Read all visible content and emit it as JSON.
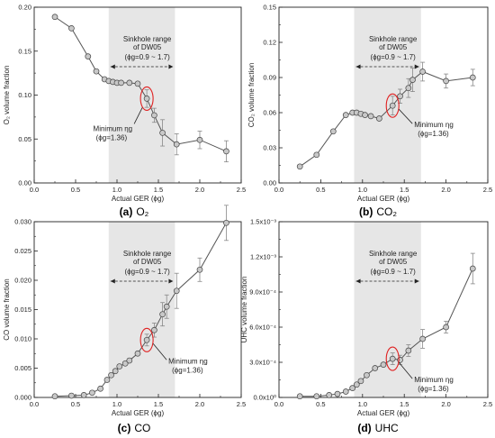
{
  "colors": {
    "band": "#e6e6e6",
    "line": "#555555",
    "marker_fill": "#c8c8c8",
    "highlight": "#e02020",
    "axis": "#222222"
  },
  "chart_data": [
    {
      "type": "line",
      "caption_letter": "(a)",
      "caption_text": "O₂",
      "xlabel": "Actual GER (ϕg)",
      "ylabel": "O₂ volume fraction",
      "xlim": [
        0.0,
        2.5
      ],
      "ylim": [
        0.0,
        0.2
      ],
      "xticks": [
        "0.0",
        "0.5",
        "1.0",
        "1.5",
        "2.0",
        "2.5"
      ],
      "yticks": [
        "0.00",
        "0.05",
        "0.10",
        "0.15",
        "0.20"
      ],
      "band": [
        0.9,
        1.7
      ],
      "band_title_1": "Sinkhole range",
      "band_title_2": "of DW05",
      "band_range": "(ϕg=0.9 ~ 1.7)",
      "annotation_1": "Minimum ηg",
      "annotation_2": "(ϕg=1.36)",
      "highlight_x": 1.36,
      "x": [
        0.25,
        0.45,
        0.65,
        0.75,
        0.85,
        0.9,
        0.95,
        1.0,
        1.05,
        1.15,
        1.25,
        1.36,
        1.45,
        1.55,
        1.72,
        2.0,
        2.32
      ],
      "y": [
        0.189,
        0.176,
        0.144,
        0.127,
        0.118,
        0.116,
        0.115,
        0.114,
        0.114,
        0.114,
        0.113,
        0.096,
        0.077,
        0.057,
        0.044,
        0.049,
        0.036
      ],
      "err": [
        0,
        0,
        0,
        0,
        0,
        0,
        0,
        0,
        0,
        0,
        0,
        0.01,
        0.008,
        0.015,
        0.012,
        0.01,
        0.012
      ]
    },
    {
      "type": "line",
      "caption_letter": "(b)",
      "caption_text": "CO₂",
      "xlabel": "Actual GER (ϕg)",
      "ylabel": "CO₂ volume fraction",
      "xlim": [
        0.0,
        2.5
      ],
      "ylim": [
        0.0,
        0.15
      ],
      "xticks": [
        "0.0",
        "0.5",
        "1.0",
        "1.5",
        "2.0",
        "2.5"
      ],
      "yticks": [
        "0.00",
        "0.03",
        "0.06",
        "0.09",
        "0.12",
        "0.15"
      ],
      "band": [
        0.9,
        1.7
      ],
      "band_title_1": "Sinkhole range",
      "band_title_2": "of DW05",
      "band_range": "(ϕg=0.9 ~ 1.7)",
      "annotation_1": "Minimum ηg",
      "annotation_2": "(ϕg=1.36)",
      "highlight_x": 1.36,
      "x": [
        0.25,
        0.45,
        0.65,
        0.8,
        0.88,
        0.93,
        0.98,
        1.03,
        1.1,
        1.2,
        1.36,
        1.45,
        1.55,
        1.6,
        1.72,
        2.0,
        2.32
      ],
      "y": [
        0.014,
        0.024,
        0.044,
        0.058,
        0.06,
        0.06,
        0.059,
        0.058,
        0.057,
        0.055,
        0.066,
        0.074,
        0.081,
        0.088,
        0.095,
        0.087,
        0.09
      ],
      "err": [
        0,
        0,
        0,
        0,
        0,
        0,
        0,
        0,
        0,
        0,
        0.008,
        0.006,
        0.008,
        0.01,
        0.008,
        0.006,
        0.007
      ]
    },
    {
      "type": "line",
      "caption_letter": "(c)",
      "caption_text": "CO",
      "xlabel": "Actual GER (ϕg)",
      "ylabel": "CO volume fraction",
      "xlim": [
        0.0,
        2.5
      ],
      "ylim": [
        0.0,
        0.03
      ],
      "xticks": [
        "0.0",
        "0.5",
        "1.0",
        "1.5",
        "2.0",
        "2.5"
      ],
      "yticks": [
        "0.000",
        "0.005",
        "0.010",
        "0.015",
        "0.020",
        "0.025",
        "0.030"
      ],
      "band": [
        0.9,
        1.7
      ],
      "band_title_1": "Sinkhole range",
      "band_title_2": "of DW05",
      "band_range": "(ϕg=0.9 ~ 1.7)",
      "annotation_1": "Minimum ηg",
      "annotation_2": "(ϕg=1.36)",
      "highlight_x": 1.36,
      "x": [
        0.25,
        0.45,
        0.6,
        0.7,
        0.8,
        0.88,
        0.93,
        0.98,
        1.03,
        1.1,
        1.15,
        1.25,
        1.36,
        1.45,
        1.55,
        1.6,
        1.72,
        2.0,
        2.32
      ],
      "y": [
        0.0002,
        0.0003,
        0.0004,
        0.0008,
        0.0015,
        0.003,
        0.0038,
        0.0045,
        0.0053,
        0.0058,
        0.0063,
        0.0075,
        0.0098,
        0.0115,
        0.0142,
        0.0155,
        0.0182,
        0.0218,
        0.0298
      ],
      "err": [
        0,
        0,
        0,
        0,
        0,
        0,
        0,
        0,
        0,
        0,
        0,
        0,
        0.001,
        0.0012,
        0.002,
        0.002,
        0.003,
        0.002,
        0.003
      ]
    },
    {
      "type": "line",
      "caption_letter": "(d)",
      "caption_text": "UHC",
      "xlabel": "Actual GER (ϕg)",
      "ylabel": "UHC volume fraction",
      "xlim": [
        0.0,
        2.5
      ],
      "ylim": [
        0.0,
        0.0015
      ],
      "xticks": [
        "0.0",
        "0.5",
        "1.0",
        "1.5",
        "2.0",
        "2.5"
      ],
      "yticks": [
        "0.0x10⁰",
        "3.0x10⁻⁴",
        "6.0x10⁻⁴",
        "9.0x10⁻⁴",
        "1.2x10⁻³",
        "1.5x10⁻³"
      ],
      "band": [
        0.9,
        1.7
      ],
      "band_title_1": "Sinkhole range",
      "band_title_2": "of DW05",
      "band_range": "(ϕg=0.9 ~ 1.7)",
      "annotation_1": "Minimum ηg",
      "annotation_2": "(ϕg=1.36)",
      "highlight_x": 1.36,
      "x": [
        0.25,
        0.45,
        0.6,
        0.7,
        0.8,
        0.88,
        0.93,
        0.98,
        1.05,
        1.15,
        1.25,
        1.36,
        1.45,
        1.55,
        1.72,
        2.0,
        2.32
      ],
      "y": [
        1e-05,
        1e-05,
        2e-05,
        3e-05,
        5e-05,
        8e-05,
        0.00011,
        0.00014,
        0.00019,
        0.00025,
        0.00028,
        0.00033,
        0.00032,
        0.0004,
        0.0005,
        0.0006,
        0.0011
      ],
      "err": [
        0,
        0,
        0,
        0,
        0,
        0,
        0,
        0,
        0,
        0,
        0,
        5e-05,
        4e-05,
        5e-05,
        8e-05,
        5e-05,
        0.00013
      ]
    }
  ]
}
